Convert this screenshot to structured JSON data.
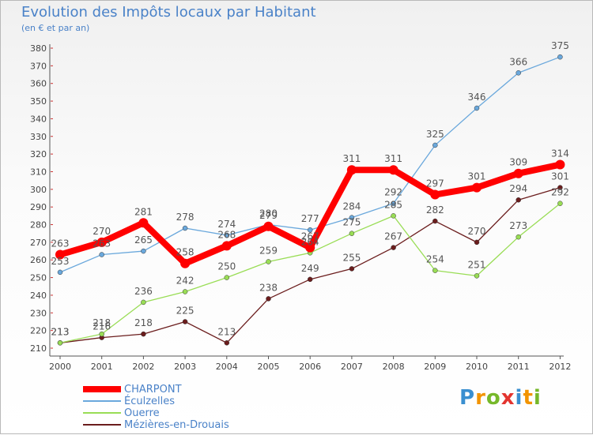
{
  "title": "Evolution des Impôts locaux par Habitant",
  "subtitle": "(en € et par an)",
  "logo_text": "Proxiti",
  "chart_data": {
    "type": "line",
    "x": [
      "2000",
      "2001",
      "2002",
      "2003",
      "2004",
      "2005",
      "2006",
      "2007",
      "2008",
      "2009",
      "2010",
      "2011",
      "2012"
    ],
    "ylim": [
      210,
      380
    ],
    "yticks": [
      210,
      220,
      230,
      240,
      250,
      260,
      270,
      280,
      290,
      300,
      310,
      320,
      330,
      340,
      350,
      360,
      370,
      380
    ],
    "grid": false,
    "legend_position": "bottom-left",
    "series": [
      {
        "name": "CHARPONT",
        "color": "#ff0000",
        "values": [
          263,
          270,
          281,
          258,
          268,
          279,
          267,
          311,
          311,
          297,
          301,
          309,
          314
        ]
      },
      {
        "name": "Éculzelles",
        "color": "#6aa8dc",
        "values": [
          253,
          263,
          265,
          278,
          274,
          280,
          277,
          284,
          292,
          325,
          346,
          366,
          375
        ]
      },
      {
        "name": "Ouerre",
        "color": "#99dd55",
        "values": [
          213,
          218,
          236,
          242,
          250,
          259,
          264,
          275,
          285,
          254,
          251,
          273,
          292
        ]
      },
      {
        "name": "Mézières-en-Drouais",
        "color": "#6b1d1d",
        "values": [
          213,
          216,
          218,
          225,
          213,
          238,
          249,
          255,
          267,
          282,
          270,
          294,
          301
        ]
      }
    ]
  }
}
